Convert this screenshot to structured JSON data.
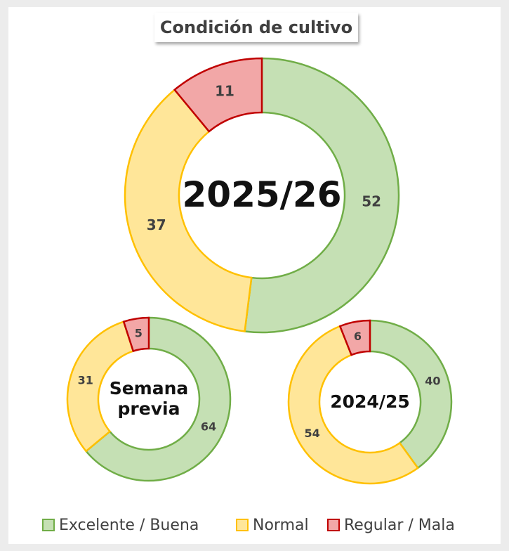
{
  "title": "Condición de cultivo",
  "chart_data": [
    {
      "type": "pie",
      "title": "2025/26",
      "categories": [
        "Excelente / Buena",
        "Normal",
        "Regular / Mala"
      ],
      "values": [
        52,
        37,
        11
      ],
      "colors": [
        "#c5e0b4",
        "#ffe699",
        "#f2a7a7"
      ],
      "edge_colors": [
        "#70ad47",
        "#ffc000",
        "#c00000"
      ]
    },
    {
      "type": "pie",
      "title": "Semana previa",
      "categories": [
        "Excelente / Buena",
        "Normal",
        "Regular / Mala"
      ],
      "values": [
        64,
        31,
        5
      ],
      "colors": [
        "#c5e0b4",
        "#ffe699",
        "#f2a7a7"
      ],
      "edge_colors": [
        "#70ad47",
        "#ffc000",
        "#c00000"
      ]
    },
    {
      "type": "pie",
      "title": "2024/25",
      "categories": [
        "Excelente / Buena",
        "Normal",
        "Regular / Mala"
      ],
      "values": [
        40,
        54,
        6
      ],
      "colors": [
        "#c5e0b4",
        "#ffe699",
        "#f2a7a7"
      ],
      "edge_colors": [
        "#70ad47",
        "#ffc000",
        "#c00000"
      ]
    }
  ]
}
